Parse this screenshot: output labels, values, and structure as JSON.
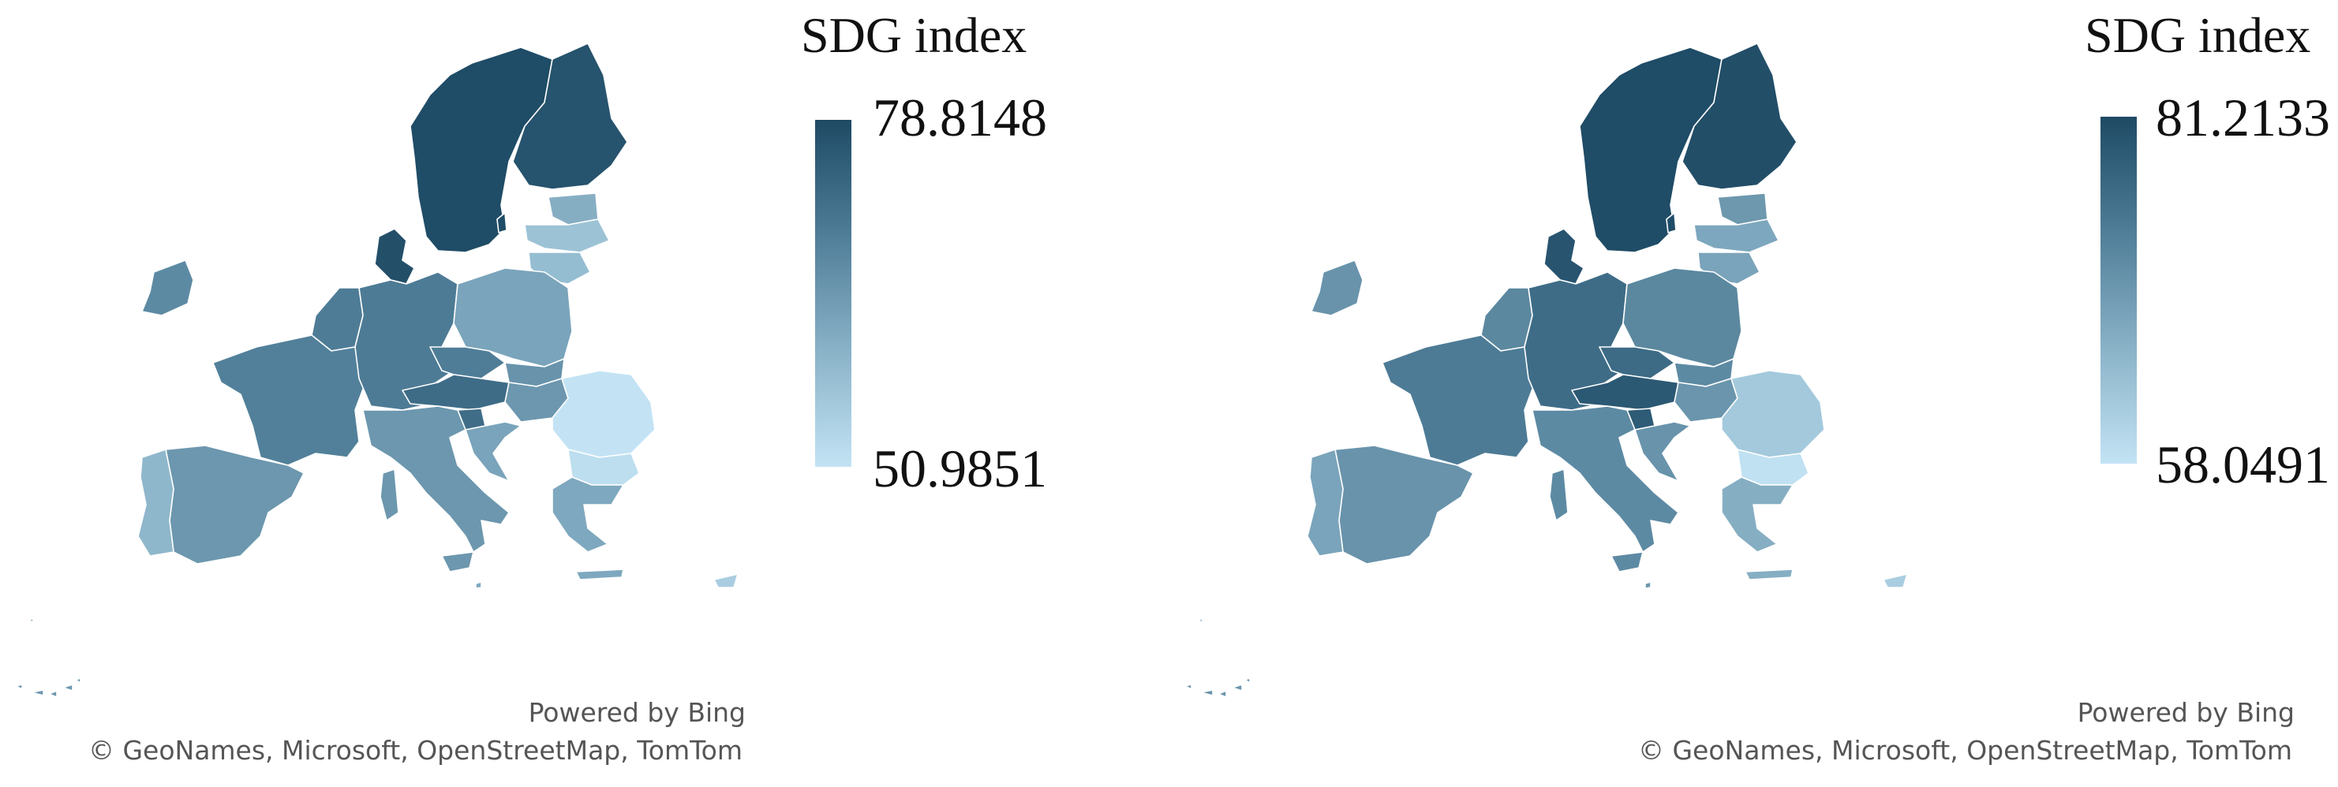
{
  "maps": [
    {
      "legend": {
        "title": "SDG index",
        "max": "78.8148",
        "min": "50.9851"
      },
      "attribution": {
        "powered": "Powered by Bing",
        "credits": "© GeoNames, Microsoft, OpenStreetMap, TomTom"
      },
      "fills": {
        "sweden": "#1f4c66",
        "finland": "#26536d",
        "norway_gap": "#ffffff",
        "denmark": "#234f69",
        "estonia": "#86aec3",
        "latvia": "#9cc2d6",
        "lithuania": "#95bdd2",
        "ireland": "#5d8aa3",
        "france": "#52809a",
        "benelux": "#4e7c96",
        "germany": "#4d7b95",
        "poland": "#7aa4bb",
        "czechia": "#4f7d97",
        "austria": "#3e6c87",
        "slovakia": "#6893ab",
        "hungary": "#6c97ae",
        "slovenia": "#3f6d88",
        "croatia": "#7aa4bb",
        "romania": "#c3e3f4",
        "bulgaria": "#bcdeef",
        "italy": "#6c97ae",
        "spain": "#6c97ae",
        "portugal": "#8fb7cc",
        "greece": "#7ea8bf",
        "cyprus": "#a9cde0",
        "malta": "#7ea8bf",
        "islands": "#6c97ae"
      }
    },
    {
      "legend": {
        "title": "SDG index",
        "max": "81.2133",
        "min": "58.0491"
      },
      "attribution": {
        "powered": "Powered by Bing",
        "credits": "© GeoNames, Microsoft, OpenStreetMap, TomTom"
      },
      "fills": {
        "sweden": "#1f4c66",
        "finland": "#224e68",
        "norway_gap": "#ffffff",
        "denmark": "#285470",
        "estonia": "#6d98ae",
        "latvia": "#7da7be",
        "lithuania": "#7aa4bb",
        "ireland": "#6893ab",
        "france": "#4d7b95",
        "benelux": "#5b889f",
        "germany": "#3e6c87",
        "poland": "#5b889f",
        "czechia": "#3d6b86",
        "austria": "#2b5873",
        "slovakia": "#5d8aa3",
        "hungary": "#6a95ac",
        "slovenia": "#2e5b76",
        "croatia": "#6893ab",
        "romania": "#a4c9dc",
        "bulgaria": "#c0e1f2",
        "italy": "#5d8aa3",
        "spain": "#6893ab",
        "portugal": "#7aa4bb",
        "greece": "#86aec3",
        "cyprus": "#a9cde0",
        "malta": "#6c97ae",
        "islands": "#6893ab"
      }
    }
  ]
}
